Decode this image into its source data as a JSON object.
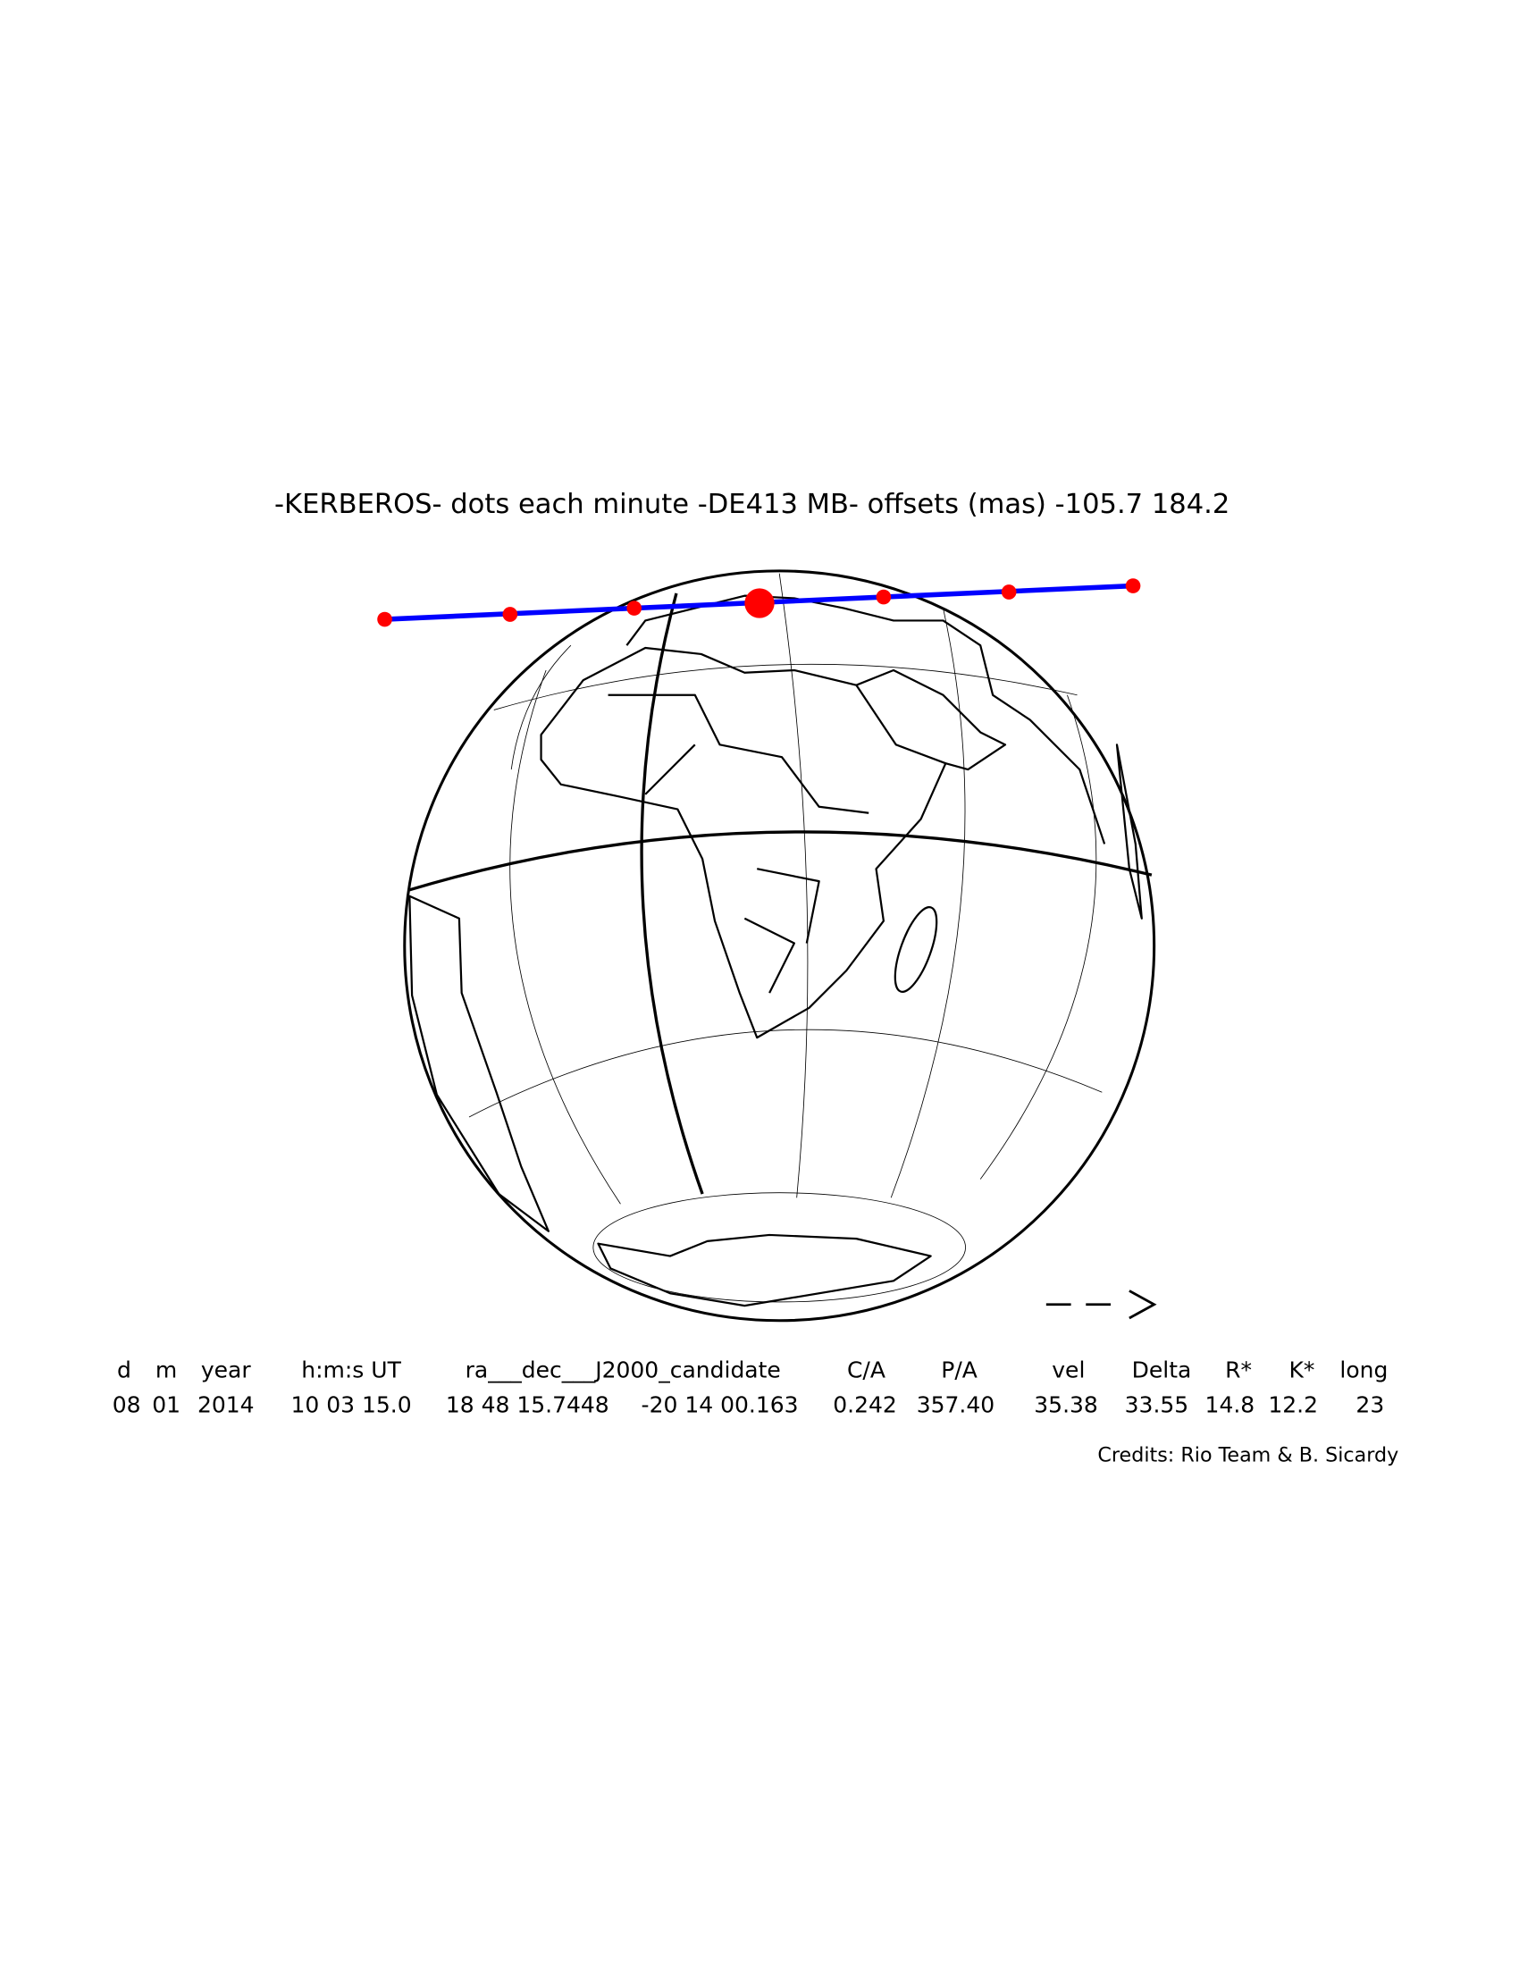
{
  "title": "-KERBEROS- dots each minute -DE413 MB- offsets (mas) -105.7   184.2",
  "table": {
    "header": [
      "d",
      "m",
      "year",
      "h:m:s UT",
      "ra___dec___J2000_candidate",
      "C/A",
      "P/A",
      "vel",
      "Delta",
      "R*",
      "K*",
      "long"
    ],
    "values": [
      "08",
      "01",
      "2014",
      "10 03 15.0",
      "18 48 15.7448",
      "-20 14 00.163",
      "0.242",
      "357.40",
      "35.38",
      "33.55",
      "14.8",
      "12.2",
      "23"
    ]
  },
  "credits": "Credits: Rio Team & B. Sicardy"
}
